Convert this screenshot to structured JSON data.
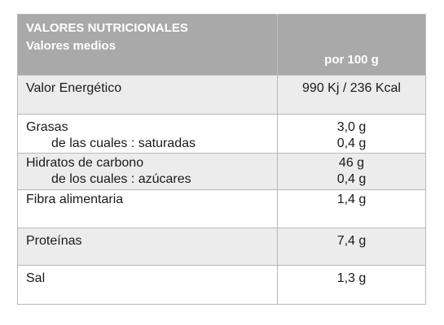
{
  "header": {
    "title": "VALORES NUTRICIONALES",
    "subtitle": "Valores medios",
    "per": "por 100 g"
  },
  "rows": [
    {
      "label": "Valor Energético",
      "value": "990 Kj / 236 Kcal"
    },
    {
      "label": "Grasas",
      "value": "3,0 g",
      "sub_label": "de las cuales : saturadas",
      "sub_value": "0,4 g"
    },
    {
      "label": "Hidratos de carbono",
      "value": "46 g",
      "sub_label": "de los cuales : azúcares",
      "sub_value": "0,4 g"
    },
    {
      "label": "Fibra alimentaria",
      "value": "1,4 g"
    },
    {
      "label": "Proteínas",
      "value": "7,4 g"
    },
    {
      "label": "Sal",
      "value": "1,3 g"
    }
  ],
  "colors": {
    "header_bg": "#a9a9a9",
    "alt_row_bg": "#ececec",
    "border": "#b8b8b8"
  }
}
